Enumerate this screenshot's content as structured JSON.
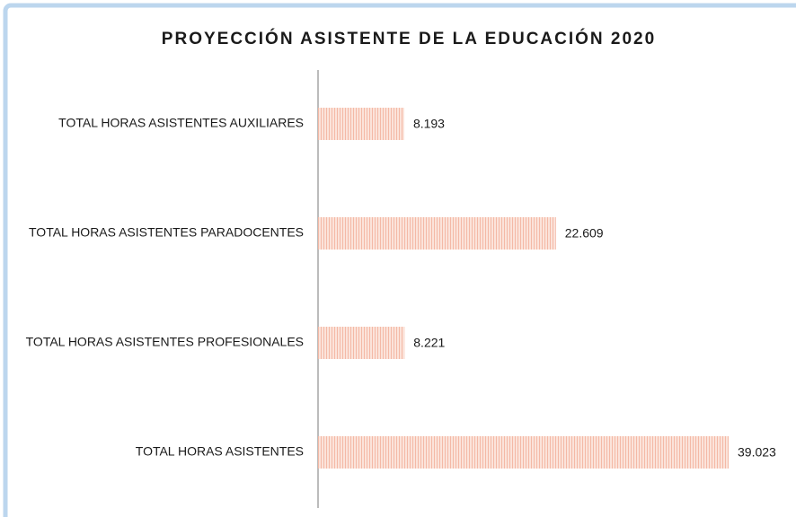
{
  "chart_data": {
    "type": "bar",
    "orientation": "horizontal",
    "title": "PROYECCIÓN ASISTENTE DE LA EDUCACIÓN 2020",
    "categories": [
      "TOTAL HORAS ASISTENTES AUXILIARES",
      "TOTAL HORAS ASISTENTES PARADOCENTES",
      "TOTAL HORAS ASISTENTES PROFESIONALES",
      "TOTAL HORAS ASISTENTES"
    ],
    "values": [
      8193,
      22609,
      8221,
      39023
    ],
    "value_labels": [
      "8.193",
      "22.609",
      "8.221",
      "39.023"
    ],
    "color": "#f4b9a6"
  }
}
